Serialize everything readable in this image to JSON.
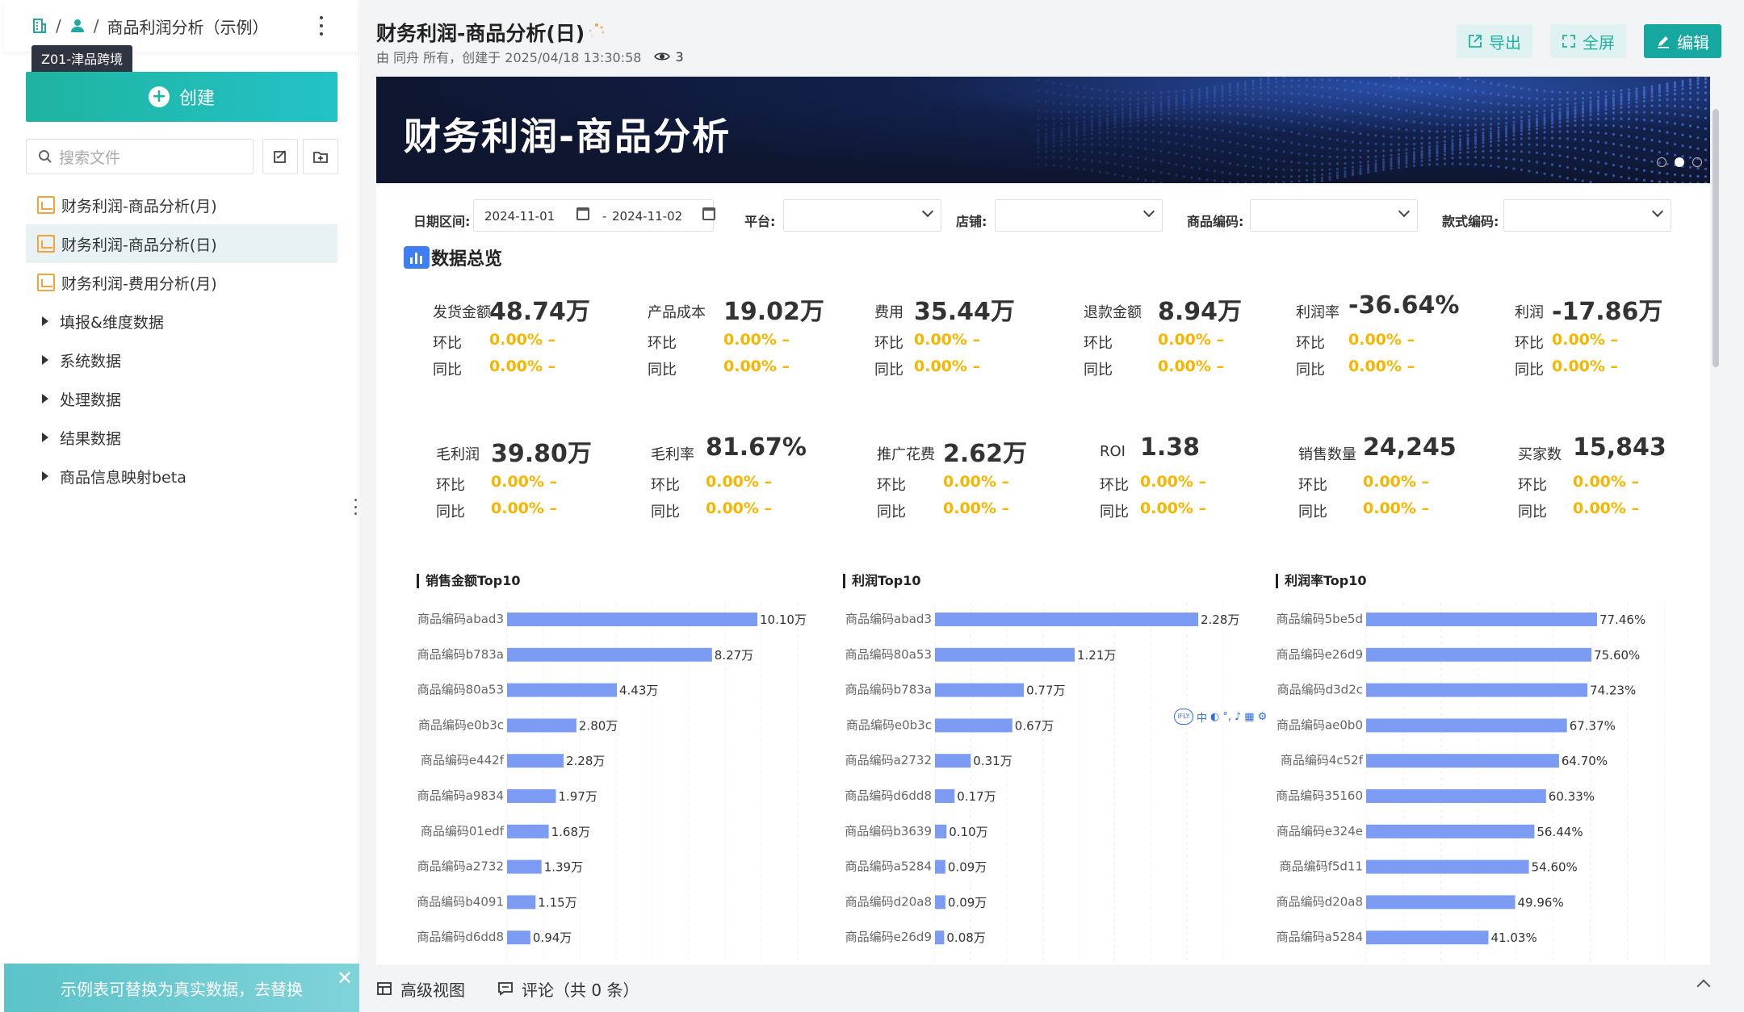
{
  "sidebar": {
    "breadcrumb": {
      "current": "商品利润分析（示例）"
    },
    "tooltip": "Z01-津品跨境",
    "create_label": "创建",
    "search_placeholder": "搜索文件",
    "items": [
      {
        "label": "财务利润-商品分析(月)",
        "type": "report",
        "active": false
      },
      {
        "label": "财务利润-商品分析(日)",
        "type": "report",
        "active": true
      },
      {
        "label": "财务利润-费用分析(月)",
        "type": "report",
        "active": false
      },
      {
        "label": "填报&维度数据",
        "type": "folder"
      },
      {
        "label": "系统数据",
        "type": "folder"
      },
      {
        "label": "处理数据",
        "type": "folder"
      },
      {
        "label": "结果数据",
        "type": "folder"
      },
      {
        "label": "商品信息映射beta",
        "type": "folder"
      }
    ],
    "notice": "示例表可替换为真实数据，去替换"
  },
  "header": {
    "title": "财务利润-商品分析(日)",
    "meta": "由 同舟 所有，创建于 2025/04/18 13:30:58",
    "views": "3",
    "export_label": "导出",
    "fullscreen_label": "全屏",
    "edit_label": "编辑"
  },
  "banner": {
    "title": "财务利润-商品分析"
  },
  "filters": {
    "date_label": "日期区间:",
    "date_start": "2024-11-01",
    "date_sep": "-",
    "date_end": "2024-11-02",
    "platform_label": "平台:",
    "shop_label": "店铺:",
    "product_code_label": "商品编码:",
    "style_code_label": "款式编码:"
  },
  "overview": {
    "title": "数据总览",
    "mom_label": "环比",
    "yoy_label": "同比",
    "row1": [
      {
        "label": "发货金额",
        "value": "48.74万",
        "mom": "0.00% –",
        "yoy": "0.00% –"
      },
      {
        "label": "产品成本",
        "value": "19.02万",
        "mom": "0.00% –",
        "yoy": "0.00% –"
      },
      {
        "label": "费用",
        "value": "35.44万",
        "mom": "0.00% –",
        "yoy": "0.00% –"
      },
      {
        "label": "退款金额",
        "value": "8.94万",
        "mom": "0.00% –",
        "yoy": "0.00% –"
      },
      {
        "label": "利润率",
        "value": "-36.64%",
        "mom": "0.00% –",
        "yoy": "0.00% –"
      },
      {
        "label": "利润",
        "value": "-17.86万",
        "mom": "0.00% –",
        "yoy": "0.00% –"
      }
    ],
    "row2": [
      {
        "label": "毛利润",
        "value": "39.80万",
        "mom": "0.00% –",
        "yoy": "0.00% –"
      },
      {
        "label": "毛利率",
        "value": "81.67%",
        "mom": "0.00% –",
        "yoy": "0.00% –"
      },
      {
        "label": "推广花费",
        "value": "2.62万",
        "mom": "0.00% –",
        "yoy": "0.00% –"
      },
      {
        "label": "ROI",
        "value": "1.38",
        "mom": "0.00% –",
        "yoy": "0.00% –"
      },
      {
        "label": "销售数量",
        "value": "24,245",
        "mom": "0.00% –",
        "yoy": "0.00% –"
      },
      {
        "label": "买家数",
        "value": "15,843",
        "mom": "0.00% –",
        "yoy": "0.00% –"
      }
    ]
  },
  "chart_data": [
    {
      "type": "bar",
      "orientation": "horizontal",
      "title": "销售金额Top10",
      "categories": [
        "商品编码abad3",
        "商品编码b783a",
        "商品编码80a53",
        "商品编码e0b3c",
        "商品编码e442f",
        "商品编码a9834",
        "商品编码01edf",
        "商品编码a2732",
        "商品编码b4091",
        "商品编码d6dd8"
      ],
      "values": [
        10.1,
        8.27,
        4.43,
        2.8,
        2.28,
        1.97,
        1.68,
        1.39,
        1.15,
        0.94
      ],
      "labels": [
        "10.10万",
        "8.27万",
        "4.43万",
        "2.80万",
        "2.28万",
        "1.97万",
        "1.68万",
        "1.39万",
        "1.15万",
        "0.94万"
      ],
      "xlim": [
        0,
        10.1
      ],
      "color": "#7b9cf2"
    },
    {
      "type": "bar",
      "orientation": "horizontal",
      "title": "利润Top10",
      "categories": [
        "商品编码abad3",
        "商品编码80a53",
        "商品编码b783a",
        "商品编码e0b3c",
        "商品编码a2732",
        "商品编码d6dd8",
        "商品编码b3639",
        "商品编码a5284",
        "商品编码d20a8",
        "商品编码e26d9"
      ],
      "values": [
        2.28,
        1.21,
        0.77,
        0.67,
        0.31,
        0.17,
        0.1,
        0.09,
        0.09,
        0.08
      ],
      "labels": [
        "2.28万",
        "1.21万",
        "0.77万",
        "0.67万",
        "0.31万",
        "0.17万",
        "0.10万",
        "0.09万",
        "0.09万",
        "0.08万"
      ],
      "xlim": [
        0,
        2.28
      ],
      "color": "#7b9cf2"
    },
    {
      "type": "bar",
      "orientation": "horizontal",
      "title": "利润率Top10",
      "categories": [
        "商品编码5be5d",
        "商品编码e26d9",
        "商品编码d3d2c",
        "商品编码ae0b0",
        "商品编码4c52f",
        "商品编码35160",
        "商品编码e324e",
        "商品编码f5d11",
        "商品编码d20a8",
        "商品编码a5284"
      ],
      "values": [
        77.46,
        75.6,
        74.23,
        67.37,
        64.7,
        60.33,
        56.44,
        54.6,
        49.96,
        41.03
      ],
      "labels": [
        "77.46%",
        "75.60%",
        "74.23%",
        "67.37%",
        "64.70%",
        "60.33%",
        "56.44%",
        "54.60%",
        "49.96%",
        "41.03%"
      ],
      "xlim": [
        0,
        77.46
      ],
      "color": "#7b9cf2"
    }
  ],
  "bottombar": {
    "advanced_view": "高级视图",
    "comments": "评论（共 0 条）"
  },
  "colors": {
    "accent": "#16a7a0",
    "kpi_change": "#f7b500",
    "bar": "#7b9cf2",
    "banner_bg": "#0e1630"
  }
}
